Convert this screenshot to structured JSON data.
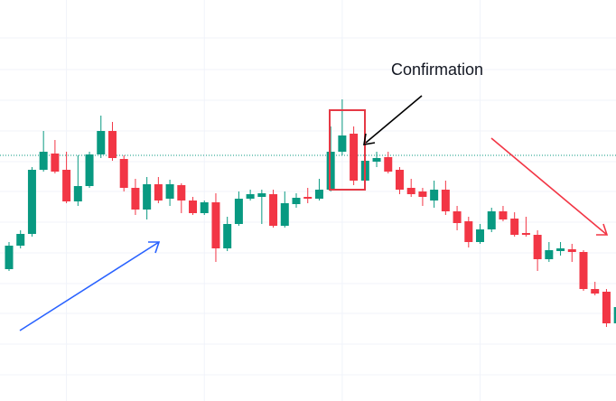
{
  "chart_data": {
    "type": "candlestick",
    "annotation": "Confirmation",
    "up_color": "#089981",
    "down_color": "#f23645",
    "ylim": [
      0,
      444
    ],
    "yticks": [
      402,
      367,
      333,
      299,
      265,
      232,
      198,
      164,
      130,
      97,
      63,
      29
    ],
    "xticks": [
      5,
      17,
      29,
      41
    ],
    "grid": true,
    "price_line": 272,
    "open": [
      146,
      172,
      185,
      256,
      274,
      256,
      221,
      238,
      273,
      299,
      268,
      236,
      212,
      240,
      224,
      239,
      222,
      208,
      220,
      169,
      196,
      224,
      226,
      229,
      194,
      218,
      226,
      224,
      234,
      276,
      296,
      244,
      265,
      270,
      256,
      236,
      232,
      222,
      234,
      210,
      199,
      176,
      190,
      210,
      202,
      186,
      184,
      157,
      166,
      168,
      165,
      124,
      121,
      86
    ],
    "high": [
      176,
      189,
      259,
      299,
      289,
      276,
      272,
      276,
      316,
      309,
      272,
      246,
      248,
      248,
      245,
      241,
      226,
      222,
      230,
      204,
      232,
      234,
      234,
      234,
      232,
      230,
      236,
      246,
      304,
      334,
      304,
      279,
      276,
      276,
      259,
      246,
      236,
      244,
      244,
      216,
      204,
      196,
      214,
      216,
      209,
      204,
      189,
      176,
      176,
      174,
      167,
      132,
      124,
      108
    ],
    "low": [
      144,
      169,
      182,
      254,
      252,
      219,
      216,
      236,
      269,
      266,
      232,
      206,
      201,
      219,
      216,
      208,
      206,
      206,
      154,
      166,
      194,
      222,
      196,
      192,
      192,
      214,
      219,
      222,
      232,
      272,
      239,
      239,
      259,
      252,
      229,
      226,
      216,
      214,
      206,
      189,
      170,
      174,
      187,
      199,
      182,
      182,
      144,
      154,
      161,
      154,
      122,
      117,
      82,
      84
    ],
    "close": [
      172,
      185,
      256,
      276,
      254,
      221,
      238,
      273,
      299,
      269,
      236,
      212,
      240,
      222,
      240,
      222,
      208,
      220,
      169,
      196,
      224,
      229,
      230,
      194,
      219,
      225,
      224,
      234,
      276,
      294,
      244,
      266,
      269,
      254,
      234,
      229,
      226,
      234,
      210,
      197,
      176,
      190,
      210,
      201,
      184,
      184,
      157,
      167,
      169,
      165,
      124,
      119,
      86,
      104
    ]
  }
}
